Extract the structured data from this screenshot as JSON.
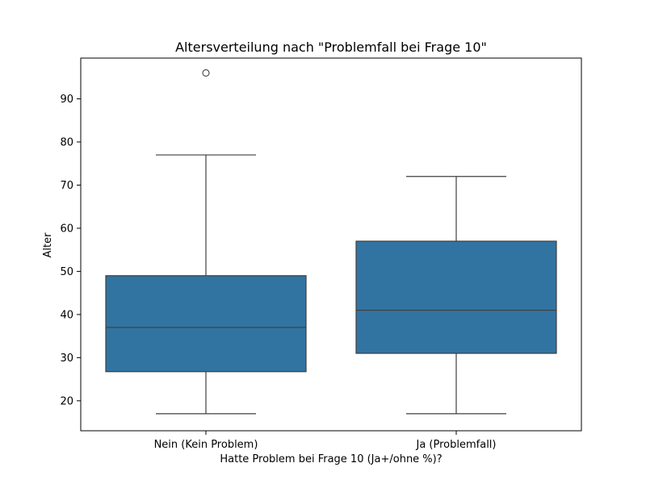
{
  "chart_data": {
    "type": "box",
    "title": "Altersverteilung nach \"Problemfall bei Frage 10\"",
    "xlabel": "Hatte Problem bei Frage 10 (Ja+/ohne %)?",
    "ylabel": "Alter",
    "categories": [
      "Nein (Kein Problem)",
      "Ja (Problemfall)"
    ],
    "ylim": [
      13.05,
      99.45
    ],
    "yticks": [
      20,
      30,
      40,
      50,
      60,
      70,
      80,
      90
    ],
    "grid": false,
    "box_color": "#3274a1",
    "edge_color": "#3f3f3f",
    "boxes": [
      {
        "category": "Nein (Kein Problem)",
        "whisker_low": 17,
        "q1": 26.75,
        "median": 37,
        "q3": 49,
        "whisker_high": 77,
        "outliers": [
          96
        ]
      },
      {
        "category": "Ja (Problemfall)",
        "whisker_low": 17,
        "q1": 31,
        "median": 41,
        "q3": 57,
        "whisker_high": 72,
        "outliers": []
      }
    ]
  }
}
